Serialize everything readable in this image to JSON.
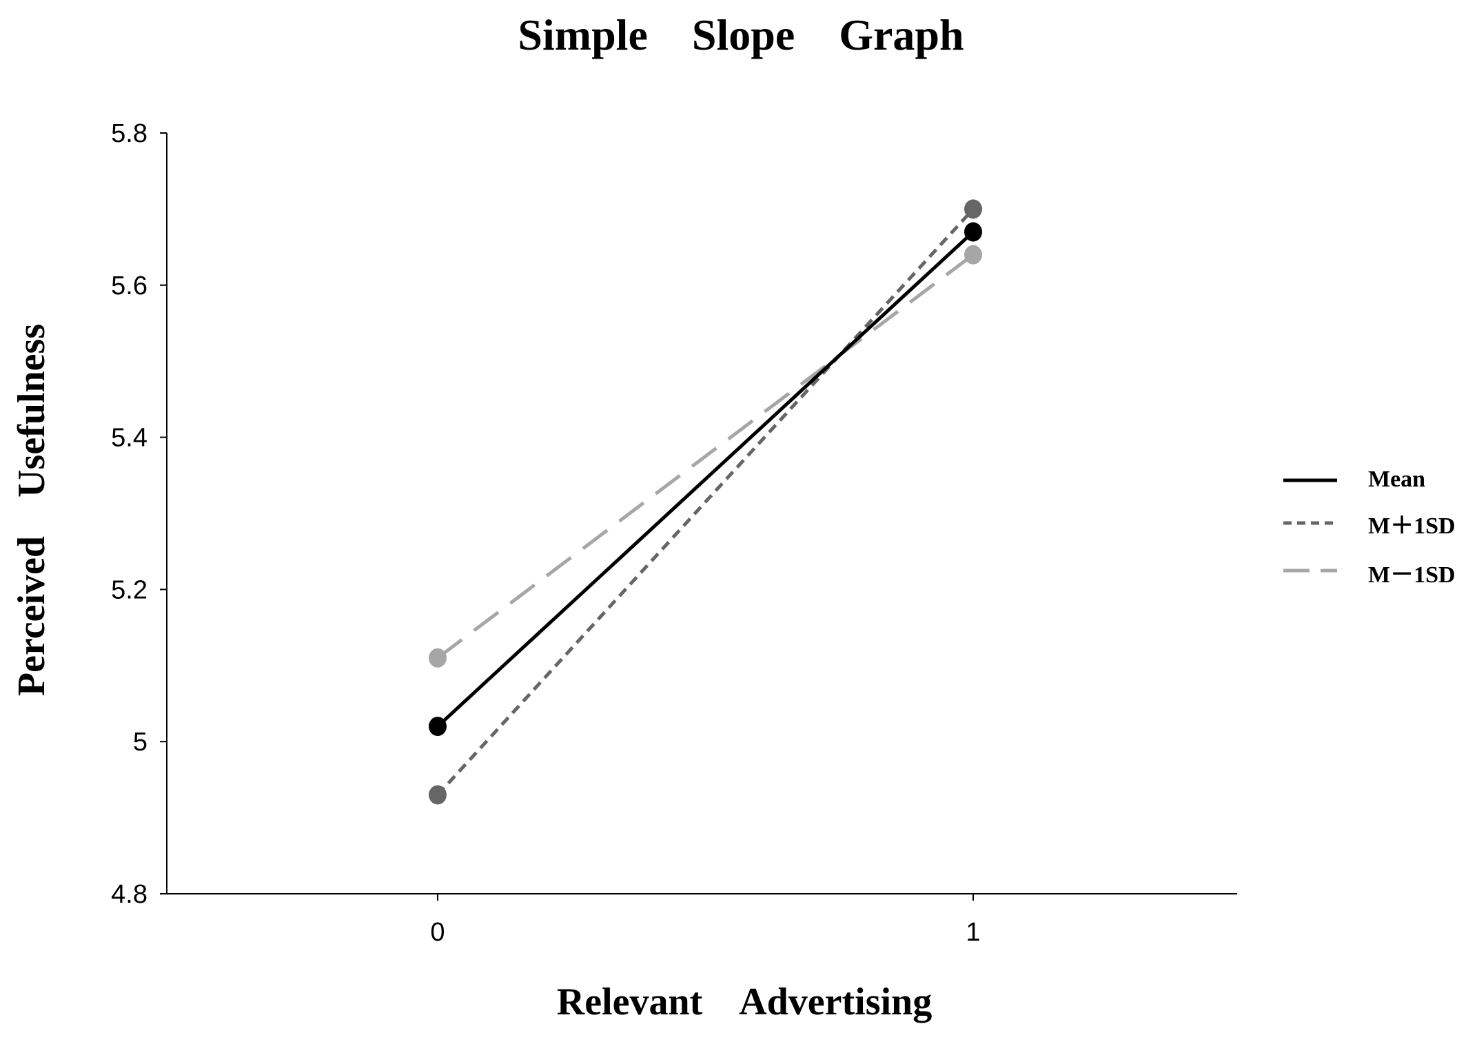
{
  "chart_data": {
    "type": "line",
    "title": "Simple    Slope    Graph",
    "xlabel": "Relevant    Advertising",
    "ylabel": "Perceived    Usefulness",
    "x": [
      0,
      1
    ],
    "x_tick_labels": [
      "0",
      "1"
    ],
    "y_tick_labels": [
      "4.8",
      "5",
      "5.2",
      "5.4",
      "5.6",
      "5.8"
    ],
    "y_ticks": [
      4.8,
      5.0,
      5.2,
      5.4,
      5.6,
      5.8
    ],
    "ylim": [
      4.8,
      5.8
    ],
    "grid": false,
    "legend_placement": "right",
    "series": [
      {
        "name": "Mean",
        "values": [
          5.02,
          5.67
        ],
        "color": "#000000",
        "style": "solid"
      },
      {
        "name": "M＋1SD",
        "values": [
          4.93,
          5.7
        ],
        "color": "#666666",
        "style": "short-dash"
      },
      {
        "name": "M－1SD",
        "values": [
          5.11,
          5.64
        ],
        "color": "#a6a6a6",
        "style": "long-dash"
      }
    ]
  }
}
